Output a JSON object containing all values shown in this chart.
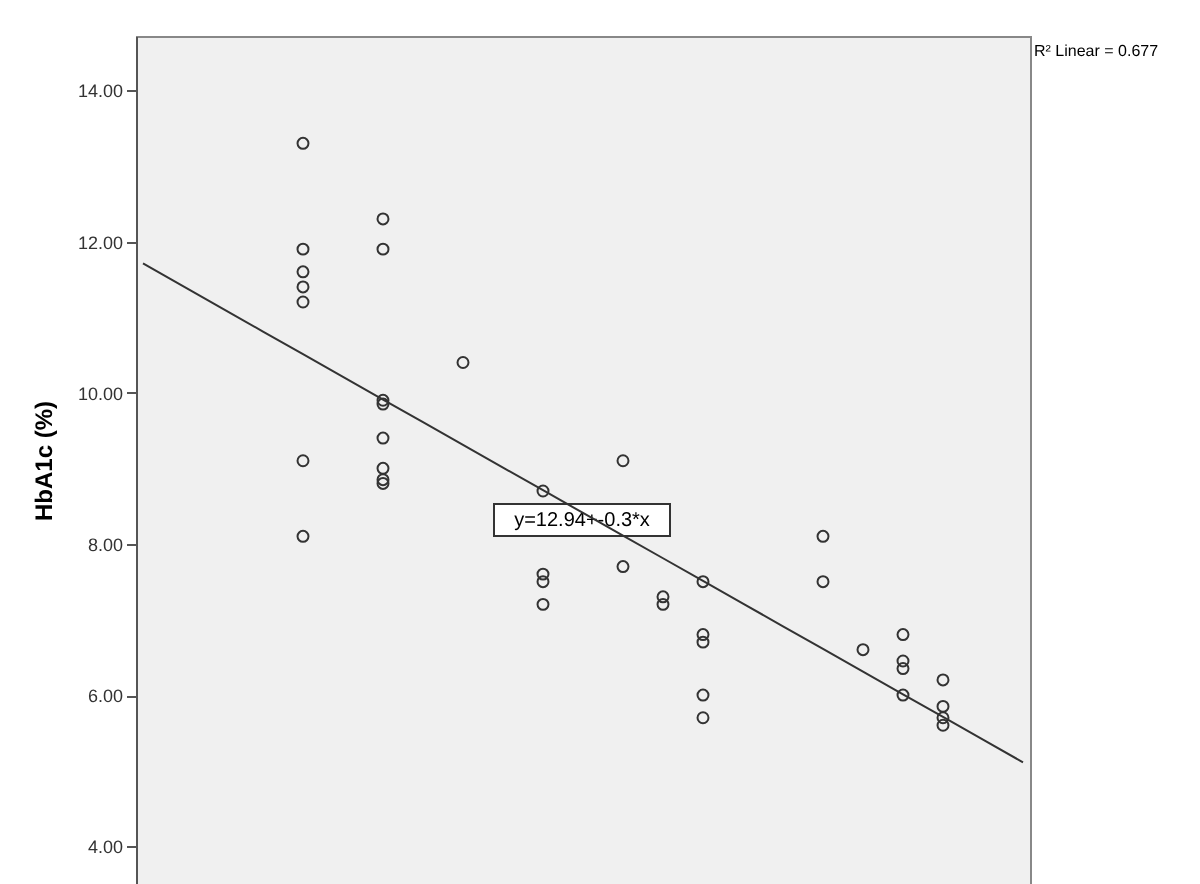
{
  "chart_data": {
    "type": "scatter",
    "ylabel": "HbA1c (%)",
    "categories": [
      null,
      null,
      null,
      null,
      null,
      null,
      null,
      null,
      null,
      null,
      null,
      null,
      null,
      null,
      null,
      null,
      null,
      null,
      null,
      null,
      null,
      null,
      null
    ],
    "series": [
      {
        "color": "#333333",
        "values": [
          null,
          null,
          null,
          null,
          13.3,
          null,
          12.3,
          null,
          10.4,
          null,
          8.7,
          null,
          9.1,
          7.3,
          7.5,
          null,
          null,
          8.1,
          6.6,
          6.8,
          6.2,
          null,
          null
        ]
      },
      {
        "color": "#333333",
        "values": [
          null,
          null,
          null,
          null,
          11.9,
          null,
          11.9,
          null,
          null,
          null,
          7.6,
          null,
          7.7,
          7.2,
          6.8,
          null,
          null,
          7.5,
          null,
          6.45,
          5.85,
          null,
          null
        ]
      },
      {
        "color": "#333333",
        "values": [
          null,
          null,
          null,
          null,
          11.6,
          null,
          9.9,
          null,
          null,
          null,
          7.5,
          null,
          null,
          null,
          6.7,
          null,
          null,
          null,
          null,
          6.35,
          5.7,
          null,
          null
        ]
      },
      {
        "color": "#333333",
        "values": [
          null,
          null,
          null,
          null,
          11.4,
          null,
          9.85,
          null,
          null,
          null,
          7.2,
          null,
          null,
          null,
          6.0,
          null,
          null,
          null,
          null,
          6.0,
          5.6,
          null,
          null
        ]
      },
      {
        "color": "#333333",
        "values": [
          null,
          null,
          null,
          null,
          11.2,
          null,
          9.4,
          null,
          null,
          null,
          null,
          null,
          null,
          null,
          5.7,
          null,
          null,
          null,
          null,
          null,
          null,
          null,
          null
        ]
      },
      {
        "color": "#333333",
        "values": [
          null,
          null,
          null,
          null,
          9.1,
          null,
          9.0,
          null,
          null,
          null,
          null,
          null,
          null,
          null,
          null,
          null,
          null,
          null,
          null,
          null,
          null,
          null,
          null
        ]
      },
      {
        "color": "#333333",
        "values": [
          null,
          null,
          null,
          null,
          8.1,
          null,
          8.85,
          null,
          null,
          null,
          null,
          null,
          null,
          null,
          null,
          null,
          null,
          null,
          null,
          null,
          null,
          null,
          null
        ]
      },
      {
        "color": "#333333",
        "values": [
          null,
          null,
          null,
          null,
          null,
          null,
          8.8,
          null,
          null,
          null,
          null,
          null,
          null,
          null,
          null,
          null,
          null,
          null,
          null,
          null,
          null,
          null,
          null
        ]
      },
      {
        "type": "line",
        "color": "#333333",
        "marker": "none",
        "values": [
          11.71,
          11.41,
          11.11,
          10.81,
          10.51,
          10.21,
          9.91,
          9.61,
          9.31,
          9.01,
          8.71,
          8.41,
          8.11,
          7.81,
          7.51,
          7.21,
          6.91,
          6.61,
          6.31,
          6.01,
          5.71,
          5.41,
          5.11
        ]
      }
    ],
    "ylim": [
      3.5,
      14.72
    ],
    "yticks": [
      {
        "value": 4,
        "label": "4.00"
      },
      {
        "value": 6,
        "label": "6.00"
      },
      {
        "value": 8,
        "label": "8.00"
      },
      {
        "value": 10,
        "label": "10.00"
      },
      {
        "value": 12,
        "label": "12.00"
      },
      {
        "value": 14,
        "label": "14.00"
      }
    ],
    "annotations": [
      "R² Linear = 0.677",
      "y=12.94+-0.3*x"
    ],
    "marker": "circle",
    "grid": false,
    "tick_labels": "y"
  }
}
